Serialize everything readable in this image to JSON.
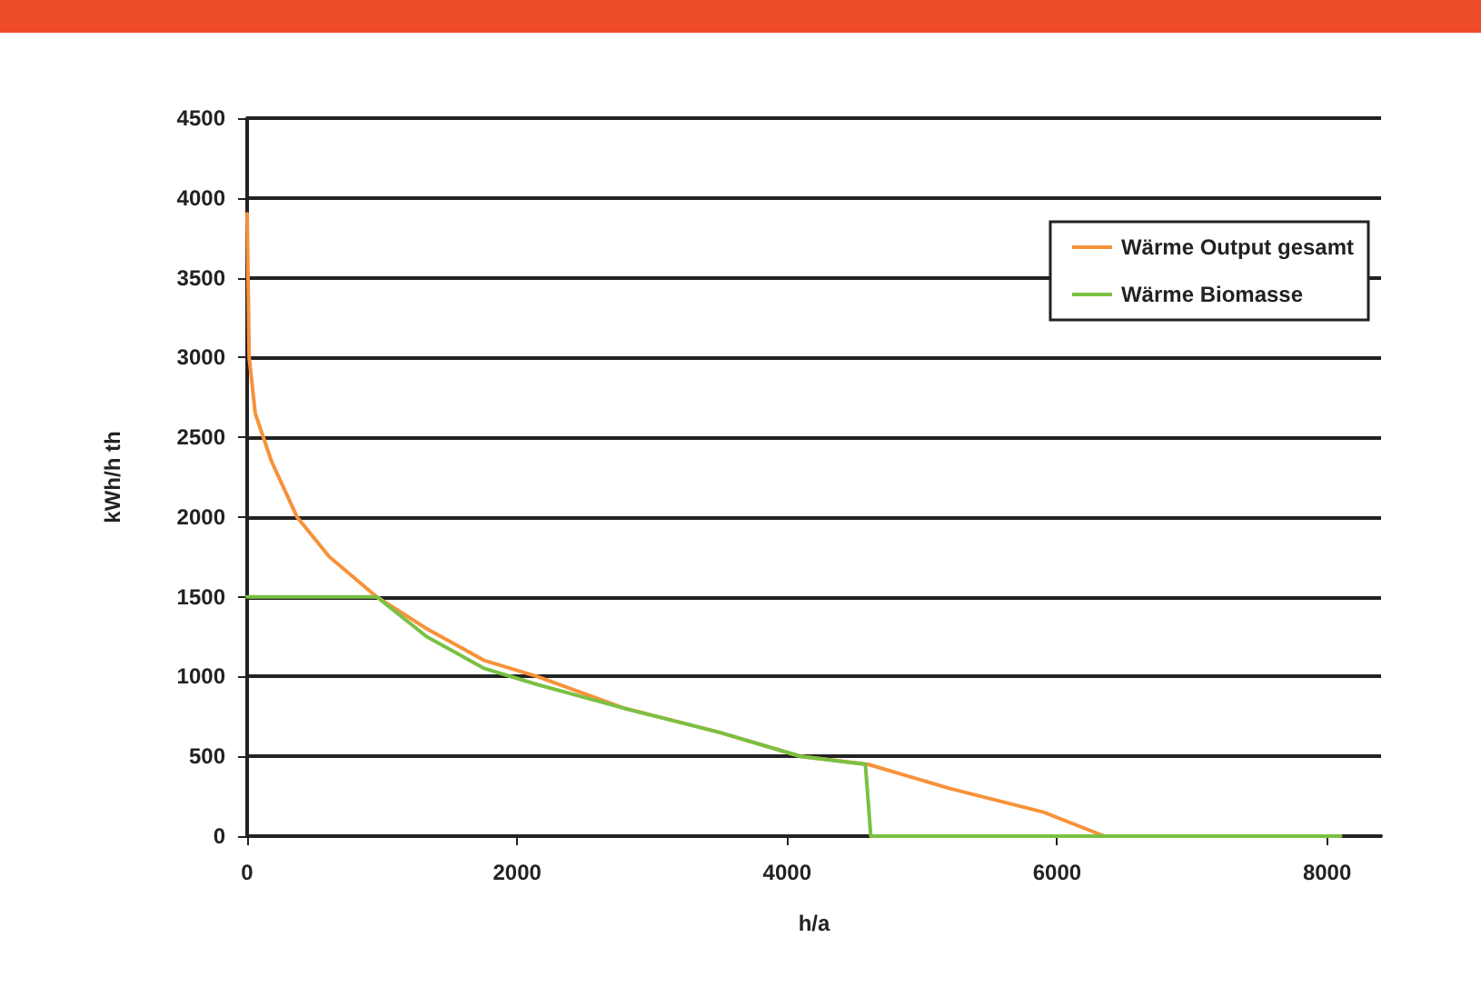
{
  "chart_data": {
    "type": "line",
    "xlabel": "h/a",
    "ylabel": "kWh/h th",
    "xlim": [
      0,
      8400
    ],
    "xticks": [
      0,
      2000,
      4000,
      6000,
      8000
    ],
    "ylim": [
      0,
      4500
    ],
    "yticks": [
      0,
      500,
      1000,
      1500,
      2000,
      2500,
      3000,
      3500,
      4000,
      4500
    ],
    "grid": "y",
    "legend": "top right",
    "marker": "none",
    "line_style": "solid",
    "series": [
      {
        "name": "Wärme Output gesamt",
        "color": "#f7923a",
        "x": [
          0,
          15,
          60,
          180,
          370,
          610,
          960,
          1330,
          1760,
          2150,
          2800,
          3500,
          4100,
          4600,
          5200,
          5900,
          6350,
          8100
        ],
        "values": [
          3900,
          3000,
          2650,
          2350,
          2000,
          1750,
          1500,
          1300,
          1100,
          1000,
          800,
          650,
          500,
          450,
          300,
          150,
          0,
          0
        ]
      },
      {
        "name": "Wärme Biomasse",
        "color": "#7ac143",
        "x": [
          0,
          960,
          1330,
          1760,
          2150,
          2800,
          3500,
          4100,
          4580,
          4620,
          8100
        ],
        "values": [
          1500,
          1500,
          1250,
          1050,
          950,
          800,
          650,
          500,
          450,
          0,
          0
        ]
      }
    ]
  }
}
